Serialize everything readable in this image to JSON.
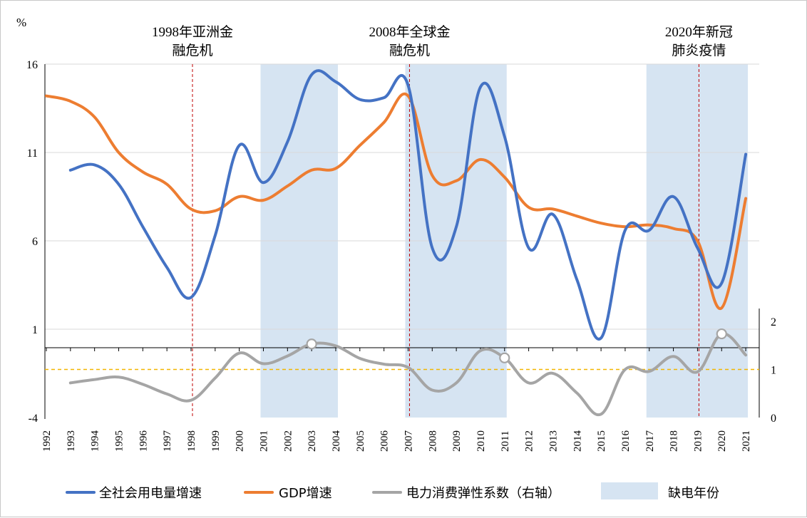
{
  "chart_data": {
    "type": "line",
    "x": [
      "1992",
      "1993",
      "1994",
      "1995",
      "1996",
      "1997",
      "1998",
      "1999",
      "2000",
      "2001",
      "2002",
      "2003",
      "2004",
      "2005",
      "2006",
      "2007",
      "2008",
      "2009",
      "2010",
      "2011",
      "2012",
      "2013",
      "2014",
      "2015",
      "2016",
      "2017",
      "2018",
      "2019",
      "2020",
      "2021"
    ],
    "y_left": {
      "unit": "%",
      "ticks": [
        16,
        11,
        6,
        1,
        -4
      ],
      "range": [
        -4,
        16
      ]
    },
    "y_right": {
      "ticks": [
        2,
        1,
        0
      ],
      "range": [
        0,
        2
      ]
    },
    "series": [
      {
        "name": "全社会用电量增速",
        "color": "#4472C4",
        "axis": "left",
        "values": [
          null,
          10.0,
          10.3,
          9.2,
          6.8,
          4.5,
          2.8,
          6.3,
          11.4,
          9.3,
          11.6,
          15.4,
          15.0,
          14.0,
          14.1,
          14.8,
          5.6,
          6.8,
          14.7,
          11.9,
          5.6,
          7.5,
          3.8,
          0.5,
          6.6,
          6.6,
          8.5,
          5.6,
          3.6,
          10.9
        ]
      },
      {
        "name": "GDP增速",
        "color": "#ED7D31",
        "axis": "left",
        "values": [
          14.2,
          13.9,
          13.0,
          11.0,
          9.9,
          9.2,
          7.8,
          7.7,
          8.5,
          8.3,
          9.1,
          10.0,
          10.1,
          11.4,
          12.7,
          14.2,
          9.7,
          9.4,
          10.6,
          9.6,
          7.9,
          7.8,
          7.4,
          7.0,
          6.8,
          6.9,
          6.7,
          6.0,
          2.2,
          8.4
        ]
      },
      {
        "name": "电力消费弹性系数（右轴）",
        "color": "#A5A5A5",
        "axis": "right",
        "values": [
          null,
          0.72,
          0.79,
          0.84,
          0.69,
          0.49,
          0.36,
          0.82,
          1.34,
          1.12,
          1.28,
          1.53,
          1.49,
          1.23,
          1.11,
          1.04,
          0.57,
          0.72,
          1.39,
          1.24,
          0.72,
          0.92,
          0.51,
          0.07,
          1.0,
          0.96,
          1.27,
          0.95,
          1.74,
          1.3
        ]
      }
    ],
    "highlighted_points": [
      {
        "series": 2,
        "x": "2003"
      },
      {
        "series": 2,
        "x": "2011"
      },
      {
        "series": 2,
        "x": "2020"
      }
    ],
    "reference_line": {
      "axis": "right",
      "value": 1,
      "color": "#F2B600",
      "style": "dashed"
    },
    "shaded_periods": [
      {
        "from": "2001",
        "to": "2004"
      },
      {
        "from": "2007",
        "to": "2011"
      },
      {
        "from": "2017",
        "to": "2021"
      }
    ],
    "events": [
      {
        "x": "1998",
        "label_lines": [
          "1998年亚洲金",
          "融危机"
        ]
      },
      {
        "x": "2007",
        "label_lines": [
          "2008年全球金",
          "融危机"
        ]
      },
      {
        "x": "2019",
        "label_lines": [
          "2020年新冠",
          "肺炎疫情"
        ]
      }
    ],
    "legend": [
      {
        "label": "全社会用电量增速",
        "kind": "line",
        "color": "#4472C4"
      },
      {
        "label": "GDP增速",
        "kind": "line",
        "color": "#ED7D31"
      },
      {
        "label": "电力消费弹性系数（右轴）",
        "kind": "line",
        "color": "#A5A5A5"
      },
      {
        "label": "缺电年份",
        "kind": "box",
        "color": "#D6E4F2"
      }
    ],
    "legend_position": "bottom",
    "shade_color": "#D6E4F2",
    "event_line_color": "#C00000",
    "grid": true
  }
}
